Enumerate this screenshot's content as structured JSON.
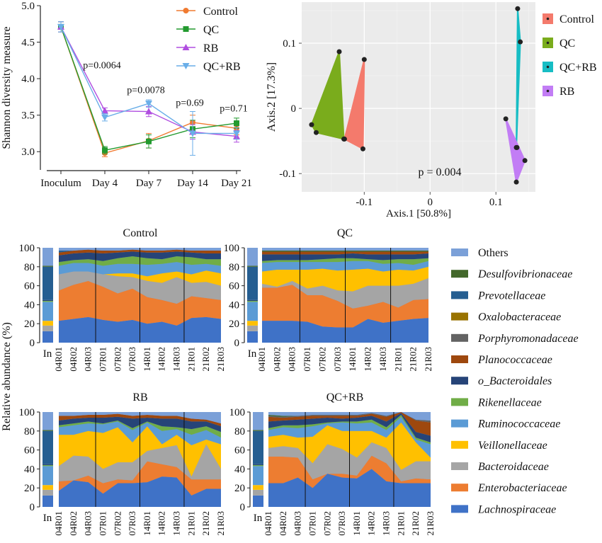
{
  "chart_data": [
    {
      "type": "line",
      "ylabel": "Shannon diversity measure",
      "xlabel": "",
      "ylim": [
        2.75,
        5.0
      ],
      "yticks": [
        3.0,
        3.5,
        4.0,
        4.5,
        5.0
      ],
      "categories": [
        "Inoculum",
        "Day 4",
        "Day 7",
        "Day 14",
        "Day 21"
      ],
      "series": [
        {
          "name": "Control",
          "color": "#f07a30",
          "marker": "circle",
          "values": [
            4.71,
            2.98,
            3.15,
            3.4,
            3.32
          ],
          "err": [
            0.07,
            0.05,
            0.1,
            0.1,
            0.09
          ]
        },
        {
          "name": "QC",
          "color": "#239a2f",
          "marker": "square",
          "values": [
            4.71,
            3.02,
            3.14,
            3.31,
            3.39
          ],
          "err": [
            0.07,
            0.05,
            0.09,
            0.12,
            0.07
          ]
        },
        {
          "name": "RB",
          "color": "#b04ee0",
          "marker": "triangle-up",
          "values": [
            4.71,
            3.56,
            3.55,
            3.27,
            3.21
          ],
          "err": [
            0.07,
            0.04,
            0.07,
            0.1,
            0.08
          ]
        },
        {
          "name": "QC+RB",
          "color": "#6aaee8",
          "marker": "triangle-down",
          "values": [
            4.71,
            3.47,
            3.66,
            3.25,
            3.25
          ],
          "err": [
            0.07,
            0.05,
            0.05,
            0.3,
            0.08
          ]
        }
      ],
      "annotations": [
        {
          "category": "Day 4",
          "text": "p=0.0064",
          "y": 4.14
        },
        {
          "category": "Day 7",
          "text": "p=0.0078",
          "y": 3.8
        },
        {
          "category": "Day 14",
          "text": "p=0.69",
          "y": 3.63
        },
        {
          "category": "Day 21",
          "text": "p=0.71",
          "y": 3.55
        }
      ],
      "legend": "top-right",
      "grid": false
    },
    {
      "type": "scatter",
      "xlabel": "Axis.1 [50.8%]",
      "ylabel": "Axis.2 [17.3%]",
      "xlim": [
        -0.195,
        0.16
      ],
      "ylim": [
        -0.128,
        0.163
      ],
      "xticks": [
        -0.1,
        0.0,
        0.1
      ],
      "xtick_labels": [
        "-0.1",
        "0",
        "0.1"
      ],
      "yticks": [
        -0.1,
        0.0,
        0.1
      ],
      "ytick_labels": [
        "-0.1",
        "0",
        "0.1"
      ],
      "annotation": "p = 0.004",
      "grid": true,
      "background": "#ebebeb",
      "legend": "right",
      "groups": [
        {
          "name": "Control",
          "color": "#f47a6c",
          "points": [
            [
              -0.13,
              -0.047
            ],
            [
              -0.1,
              0.075
            ],
            [
              -0.102,
              -0.062
            ]
          ]
        },
        {
          "name": "QC",
          "color": "#7aac1c",
          "points": [
            [
              -0.18,
              -0.025
            ],
            [
              -0.173,
              -0.037
            ],
            [
              -0.131,
              -0.047
            ],
            [
              -0.138,
              0.087
            ]
          ]
        },
        {
          "name": "QC+RB",
          "color": "#17bdc4",
          "points": [
            [
              0.133,
              0.153
            ],
            [
              0.137,
              0.102
            ],
            [
              0.131,
              -0.06
            ]
          ]
        },
        {
          "name": "RB",
          "color": "#c27df5",
          "points": [
            [
              0.115,
              -0.016
            ],
            [
              0.132,
              -0.06
            ],
            [
              0.144,
              -0.08
            ],
            [
              0.131,
              -0.113
            ]
          ]
        }
      ]
    },
    {
      "type": "area",
      "stacked": true,
      "ylabel": "Relative abundance (%)",
      "ylim": [
        0,
        100
      ],
      "yticks": [
        0,
        20,
        40,
        60,
        80,
        100
      ],
      "samples": [
        "04R01",
        "04R02",
        "04R03",
        "07R01",
        "07R02",
        "07R03",
        "14R01",
        "14R02",
        "14R03",
        "21R01",
        "21R02",
        "21R03"
      ],
      "inoculum_label": "In",
      "taxa": [
        "Lachnospiraceae",
        "Enterobacteriaceae",
        "Bacteroidaceae",
        "Veillonellaceae",
        "Ruminococcaceae",
        "Rikenellaceae",
        "o_Bacteroidales",
        "Planococcaceae",
        "Porphyromonadaceae",
        "Oxalobacteraceae",
        "Prevotellaceae",
        "Desulfovibrionaceae",
        "Others"
      ],
      "taxa_colors": [
        "#3f72c7",
        "#ed7d31",
        "#a5a5a5",
        "#ffc000",
        "#5b9bd5",
        "#70ad47",
        "#264478",
        "#9e480e",
        "#636363",
        "#997300",
        "#255e91",
        "#43682b",
        "#7ba0d8"
      ],
      "inoculum": [
        12,
        0,
        6,
        5,
        20,
        1,
        1,
        0,
        0,
        0,
        35,
        1,
        19
      ],
      "panels": [
        {
          "title": "Control",
          "data": [
            [
              23,
              32,
              17,
              0,
              9,
              4,
              7,
              3,
              0,
              0,
              2,
              0,
              3
            ],
            [
              25,
              36,
              14,
              0,
              9,
              3,
              7,
              3,
              0,
              0,
              0,
              0,
              3
            ],
            [
              27,
              38,
              10,
              0,
              9,
              4,
              7,
              3,
              0,
              0,
              0,
              0,
              2
            ],
            [
              24,
              35,
              13,
              0,
              9,
              5,
              8,
              3,
              0,
              0,
              0,
              0,
              3
            ],
            [
              22,
              30,
              18,
              3,
              10,
              6,
              6,
              2,
              0,
              0,
              0,
              0,
              3
            ],
            [
              24,
              33,
              12,
              4,
              10,
              8,
              5,
              2,
              0,
              0,
              0,
              0,
              2
            ],
            [
              20,
              28,
              17,
              5,
              12,
              7,
              6,
              2,
              0,
              0,
              0,
              0,
              3
            ],
            [
              22,
              23,
              18,
              10,
              10,
              5,
              7,
              2,
              0,
              0,
              0,
              0,
              3
            ],
            [
              18,
              23,
              28,
              6,
              10,
              6,
              5,
              2,
              0,
              0,
              0,
              0,
              2
            ],
            [
              26,
              23,
              14,
              9,
              10,
              8,
              5,
              2,
              0,
              0,
              0,
              0,
              3
            ],
            [
              27,
              20,
              17,
              12,
              7,
              5,
              6,
              3,
              0,
              0,
              0,
              0,
              3
            ],
            [
              25,
              20,
              15,
              13,
              8,
              7,
              6,
              3,
              0,
              0,
              0,
              0,
              3
            ]
          ]
        },
        {
          "title": "QC",
          "data": [
            [
              23,
              35,
              4,
              13,
              9,
              2,
              7,
              3,
              0,
              0,
              0,
              1,
              3
            ],
            [
              23,
              35,
              1,
              18,
              8,
              2,
              6,
              3,
              0,
              0,
              0,
              1,
              3
            ],
            [
              23,
              38,
              4,
              12,
              8,
              2,
              6,
              3,
              0,
              0,
              0,
              1,
              3
            ],
            [
              22,
              28,
              7,
              20,
              8,
              2,
              6,
              3,
              0,
              0,
              0,
              1,
              3
            ],
            [
              17,
              33,
              10,
              18,
              7,
              3,
              5,
              3,
              0,
              0,
              0,
              1,
              3
            ],
            [
              16,
              28,
              11,
              21,
              9,
              4,
              4,
              3,
              0,
              0,
              0,
              1,
              3
            ],
            [
              16,
              20,
              18,
              23,
              9,
              3,
              5,
              2,
              0,
              0,
              0,
              1,
              3
            ],
            [
              25,
              14,
              21,
              18,
              8,
              2,
              5,
              3,
              0,
              0,
              0,
              1,
              3
            ],
            [
              21,
              22,
              17,
              15,
              8,
              4,
              6,
              3,
              0,
              0,
              0,
              1,
              3
            ],
            [
              23,
              14,
              23,
              17,
              7,
              4,
              5,
              3,
              0,
              0,
              0,
              1,
              3
            ],
            [
              25,
              20,
              17,
              14,
              6,
              6,
              5,
              3,
              0,
              0,
              0,
              1,
              3
            ],
            [
              26,
              20,
              22,
              12,
              6,
              3,
              5,
              2,
              0,
              0,
              0,
              1,
              3
            ]
          ]
        },
        {
          "title": "RB",
          "data": [
            [
              17,
              10,
              16,
              33,
              8,
              2,
              5,
              5,
              0,
              0,
              0,
              0,
              4
            ],
            [
              28,
              0,
              26,
              22,
              10,
              2,
              5,
              3,
              0,
              0,
              0,
              0,
              4
            ],
            [
              26,
              7,
              20,
              27,
              8,
              2,
              4,
              3,
              0,
              0,
              0,
              0,
              3
            ],
            [
              14,
              11,
              15,
              38,
              9,
              1,
              6,
              3,
              0,
              0,
              0,
              0,
              3
            ],
            [
              25,
              4,
              18,
              37,
              6,
              1,
              4,
              3,
              0,
              0,
              0,
              0,
              2
            ],
            [
              25,
              3,
              19,
              21,
              13,
              2,
              10,
              3,
              0,
              0,
              0,
              0,
              4
            ],
            [
              26,
              22,
              11,
              26,
              4,
              1,
              4,
              3,
              0,
              0,
              0,
              0,
              3
            ],
            [
              32,
              13,
              17,
              4,
              14,
              5,
              8,
              3,
              0,
              0,
              0,
              0,
              4
            ],
            [
              31,
              11,
              23,
              11,
              6,
              2,
              9,
              3,
              0,
              0,
              0,
              0,
              4
            ],
            [
              12,
              17,
              3,
              33,
              11,
              6,
              8,
              3,
              0,
              0,
              0,
              0,
              7
            ],
            [
              19,
              10,
              37,
              5,
              10,
              4,
              5,
              2,
              0,
              0,
              0,
              0,
              8
            ],
            [
              19,
              10,
              11,
              26,
              7,
              6,
              6,
              3,
              0,
              0,
              0,
              0,
              12
            ]
          ]
        },
        {
          "title": "QC+RB",
          "data": [
            [
              25,
              28,
              9,
              12,
              7,
              2,
              7,
              5,
              1,
              0,
              0,
              1,
              3
            ],
            [
              25,
              28,
              11,
              12,
              8,
              2,
              5,
              3,
              1,
              0,
              0,
              1,
              4
            ],
            [
              31,
              21,
              10,
              11,
              10,
              3,
              6,
              3,
              1,
              0,
              0,
              0,
              4
            ],
            [
              20,
              9,
              17,
              28,
              11,
              2,
              6,
              3,
              1,
              0,
              0,
              0,
              3
            ],
            [
              35,
              0,
              31,
              20,
              2,
              1,
              5,
              2,
              1,
              0,
              0,
              0,
              3
            ],
            [
              31,
              4,
              26,
              19,
              9,
              1,
              3,
              3,
              1,
              0,
              0,
              0,
              3
            ],
            [
              30,
              3,
              19,
              28,
              8,
              2,
              4,
              2,
              1,
              0,
              0,
              0,
              3
            ],
            [
              40,
              14,
              14,
              12,
              9,
              3,
              4,
              2,
              1,
              0,
              0,
              0,
              1
            ],
            [
              27,
              19,
              16,
              11,
              8,
              3,
              6,
              5,
              1,
              0,
              0,
              0,
              4
            ],
            [
              25,
              2,
              12,
              50,
              6,
              2,
              2,
              1,
              0,
              0,
              0,
              0,
              0
            ],
            [
              25,
              5,
              18,
              20,
              3,
              2,
              6,
              12,
              1,
              0,
              0,
              0,
              8
            ],
            [
              25,
              4,
              19,
              4,
              14,
              2,
              7,
              14,
              2,
              0,
              0,
              0,
              9
            ]
          ]
        }
      ]
    }
  ]
}
